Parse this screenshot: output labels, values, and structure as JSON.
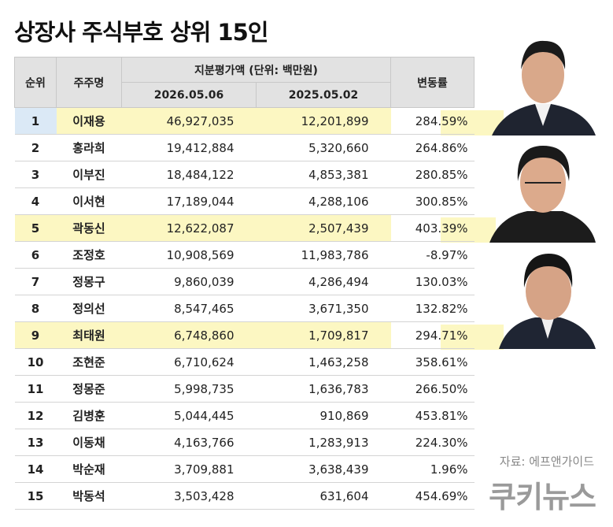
{
  "title": "상장사 주식부호 상위 15인",
  "table": {
    "header": {
      "rank": "순위",
      "name": "주주명",
      "value_group": "지분평가액 (단위: 백만원)",
      "date1": "2026.05.06",
      "date2": "2025.05.02",
      "change": "변동률"
    },
    "rows": [
      [
        "1",
        "이재용",
        "46,927,035",
        "12,201,899",
        "284.59%"
      ],
      [
        "2",
        "홍라희",
        "19,412,884",
        "5,320,660",
        "264.86%"
      ],
      [
        "3",
        "이부진",
        "18,484,122",
        "4,853,381",
        "280.85%"
      ],
      [
        "4",
        "이서현",
        "17,189,044",
        "4,288,106",
        "300.85%"
      ],
      [
        "5",
        "곽동신",
        "12,622,087",
        "2,507,439",
        "403.39%"
      ],
      [
        "6",
        "조정호",
        "10,908,569",
        "11,983,786",
        "-8.97%"
      ],
      [
        "7",
        "정몽구",
        "9,860,039",
        "4,286,494",
        "130.03%"
      ],
      [
        "8",
        "정의선",
        "8,547,465",
        "3,671,350",
        "132.82%"
      ],
      [
        "9",
        "최태원",
        "6,748,860",
        "1,709,817",
        "294.71%"
      ],
      [
        "10",
        "조현준",
        "6,710,624",
        "1,463,258",
        "358.61%"
      ],
      [
        "11",
        "정몽준",
        "5,998,735",
        "1,636,783",
        "266.50%"
      ],
      [
        "12",
        "김병훈",
        "5,044,445",
        "910,869",
        "453.81%"
      ],
      [
        "13",
        "이동채",
        "4,163,766",
        "1,283,913",
        "224.30%"
      ],
      [
        "14",
        "박순재",
        "3,709,881",
        "3,638,439",
        "1.96%"
      ],
      [
        "15",
        "박동석",
        "3,503,428",
        "631,604",
        "454.69%"
      ]
    ]
  },
  "source": "자료: 에프앤가이드",
  "logo": "쿠키뉴스"
}
